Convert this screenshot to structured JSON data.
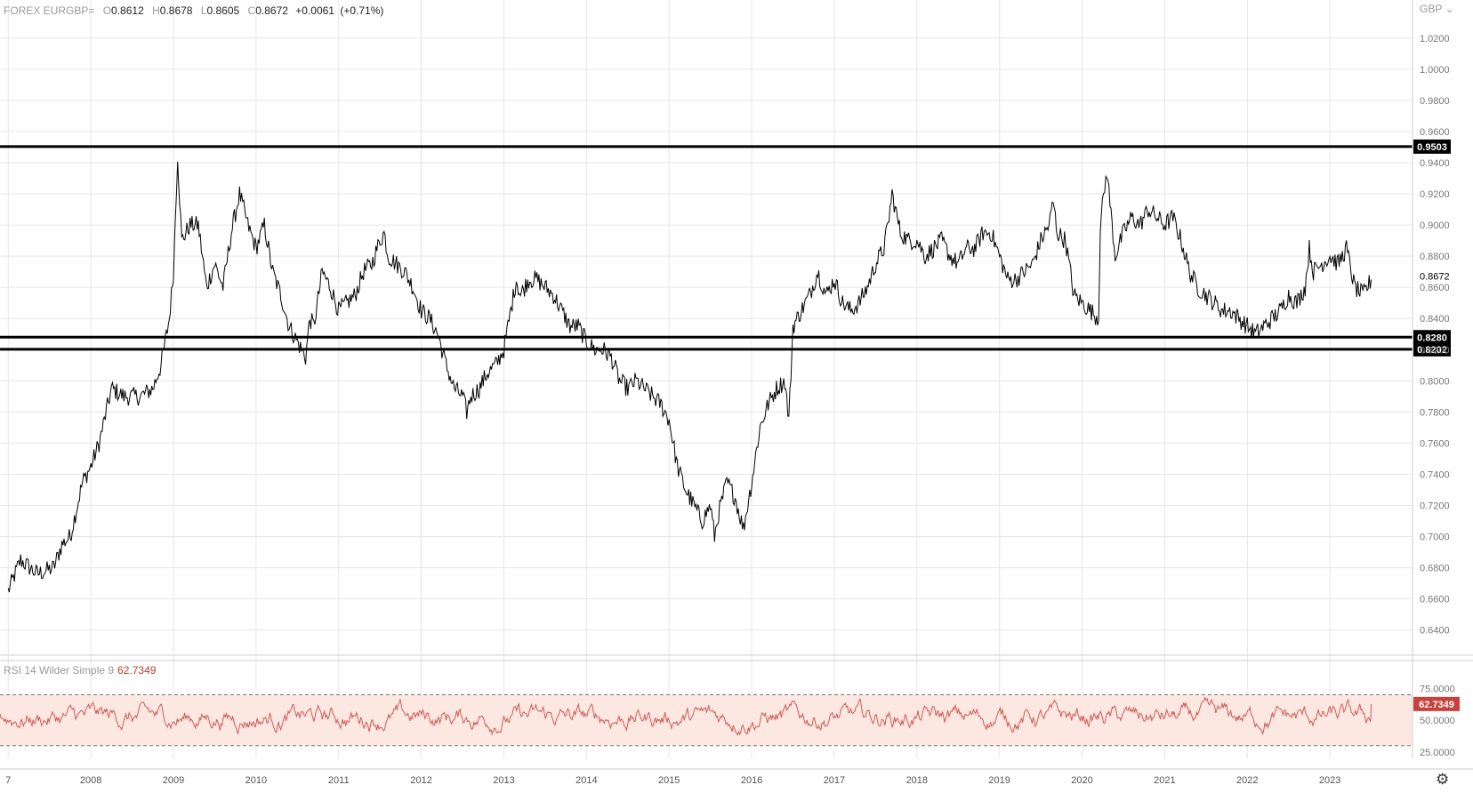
{
  "header": {
    "symbol": "FOREX EURGBP=",
    "open_label": "O",
    "open": "0.8612",
    "high_label": "H",
    "high": "0.8678",
    "low_label": "L",
    "low": "0.8605",
    "close_label": "C",
    "close": "0.8672",
    "change": "+0.0061",
    "change_pct": "(+0.71%)"
  },
  "currency_label": "GBP",
  "settings_icon": "gear-icon",
  "colors": {
    "price_line": "#000000",
    "rsi_line": "#cc5a5a",
    "rsi_band": "#fde8e1",
    "rsi_badge": "#c8413d",
    "level_line": "#000000"
  },
  "chart_data": {
    "type": "line",
    "title": "FOREX EURGBP=",
    "y_axis_label": "GBP",
    "x_tick_labels": [
      "7",
      "2008",
      "2009",
      "2010",
      "2011",
      "2012",
      "2013",
      "2014",
      "2015",
      "2016",
      "2017",
      "2018",
      "2019",
      "2020",
      "2021",
      "2022",
      "2023"
    ],
    "y_tick_labels": [
      "1.0200",
      "1.0000",
      "0.9800",
      "0.9600",
      "0.9400",
      "0.9200",
      "0.9000",
      "0.8800",
      "0.8600",
      "0.8400",
      "0.8200",
      "0.8000",
      "0.7800",
      "0.7600",
      "0.7400",
      "0.7200",
      "0.7000",
      "0.6800",
      "0.6600",
      "0.6400"
    ],
    "ylim": [
      0.625,
      1.033
    ],
    "xlim": [
      2006.9,
      2024.0
    ],
    "grid": true,
    "price_series": {
      "name": "EURGBP",
      "x": [
        2007.0,
        2007.15,
        2007.35,
        2007.55,
        2007.65,
        2007.75,
        2007.9,
        2008.0,
        2008.1,
        2008.25,
        2008.4,
        2008.6,
        2008.75,
        2008.85,
        2008.95,
        2009.0,
        2009.05,
        2009.1,
        2009.2,
        2009.3,
        2009.4,
        2009.5,
        2009.6,
        2009.7,
        2009.8,
        2009.9,
        2010.0,
        2010.1,
        2010.2,
        2010.3,
        2010.4,
        2010.5,
        2010.6,
        2010.65,
        2010.7,
        2010.8,
        2010.9,
        2011.0,
        2011.1,
        2011.2,
        2011.3,
        2011.4,
        2011.5,
        2011.55,
        2011.6,
        2011.7,
        2011.8,
        2011.9,
        2012.0,
        2012.1,
        2012.2,
        2012.3,
        2012.4,
        2012.5,
        2012.55,
        2012.6,
        2012.7,
        2012.8,
        2012.9,
        2013.0,
        2013.1,
        2013.15,
        2013.2,
        2013.3,
        2013.4,
        2013.5,
        2013.6,
        2013.7,
        2013.8,
        2013.9,
        2014.0,
        2014.1,
        2014.2,
        2014.3,
        2014.4,
        2014.5,
        2014.6,
        2014.7,
        2014.8,
        2014.9,
        2015.0,
        2015.1,
        2015.2,
        2015.3,
        2015.4,
        2015.5,
        2015.55,
        2015.6,
        2015.7,
        2015.8,
        2015.9,
        2016.0,
        2016.1,
        2016.2,
        2016.3,
        2016.4,
        2016.45,
        2016.5,
        2016.6,
        2016.7,
        2016.8,
        2016.9,
        2017.0,
        2017.1,
        2017.2,
        2017.3,
        2017.4,
        2017.5,
        2017.6,
        2017.65,
        2017.7,
        2017.8,
        2017.9,
        2018.0,
        2018.1,
        2018.2,
        2018.3,
        2018.4,
        2018.5,
        2018.6,
        2018.7,
        2018.8,
        2018.9,
        2019.0,
        2019.1,
        2019.2,
        2019.3,
        2019.4,
        2019.5,
        2019.6,
        2019.65,
        2019.7,
        2019.8,
        2019.9,
        2020.0,
        2020.1,
        2020.2,
        2020.22,
        2020.3,
        2020.4,
        2020.5,
        2020.6,
        2020.7,
        2020.8,
        2020.9,
        2021.0,
        2021.1,
        2021.2,
        2021.3,
        2021.4,
        2021.5,
        2021.6,
        2021.7,
        2021.8,
        2021.9,
        2022.0,
        2022.1,
        2022.2,
        2022.3,
        2022.4,
        2022.5,
        2022.6,
        2022.7,
        2022.75,
        2022.8,
        2022.9,
        2023.0,
        2023.1,
        2023.2,
        2023.3,
        2023.4,
        2023.5
      ],
      "values": [
        0.665,
        0.685,
        0.676,
        0.68,
        0.695,
        0.7,
        0.735,
        0.745,
        0.76,
        0.795,
        0.79,
        0.79,
        0.795,
        0.81,
        0.84,
        0.87,
        0.945,
        0.89,
        0.9,
        0.9,
        0.86,
        0.875,
        0.86,
        0.895,
        0.92,
        0.9,
        0.885,
        0.9,
        0.87,
        0.855,
        0.835,
        0.825,
        0.815,
        0.84,
        0.835,
        0.87,
        0.86,
        0.845,
        0.85,
        0.855,
        0.87,
        0.875,
        0.89,
        0.895,
        0.88,
        0.875,
        0.87,
        0.86,
        0.845,
        0.84,
        0.83,
        0.81,
        0.795,
        0.79,
        0.78,
        0.79,
        0.795,
        0.805,
        0.81,
        0.82,
        0.85,
        0.865,
        0.855,
        0.865,
        0.865,
        0.86,
        0.855,
        0.845,
        0.835,
        0.835,
        0.825,
        0.82,
        0.82,
        0.815,
        0.8,
        0.795,
        0.8,
        0.795,
        0.79,
        0.785,
        0.775,
        0.745,
        0.73,
        0.72,
        0.71,
        0.72,
        0.7,
        0.715,
        0.735,
        0.725,
        0.705,
        0.735,
        0.77,
        0.785,
        0.795,
        0.8,
        0.775,
        0.835,
        0.845,
        0.855,
        0.87,
        0.855,
        0.865,
        0.85,
        0.845,
        0.85,
        0.86,
        0.875,
        0.885,
        0.9,
        0.92,
        0.895,
        0.89,
        0.89,
        0.88,
        0.885,
        0.89,
        0.88,
        0.875,
        0.885,
        0.885,
        0.895,
        0.895,
        0.88,
        0.865,
        0.865,
        0.87,
        0.875,
        0.89,
        0.9,
        0.915,
        0.895,
        0.89,
        0.855,
        0.85,
        0.845,
        0.84,
        0.9,
        0.935,
        0.88,
        0.895,
        0.905,
        0.9,
        0.91,
        0.905,
        0.9,
        0.905,
        0.89,
        0.87,
        0.86,
        0.855,
        0.85,
        0.845,
        0.845,
        0.84,
        0.835,
        0.83,
        0.835,
        0.84,
        0.845,
        0.855,
        0.85,
        0.86,
        0.885,
        0.87,
        0.875,
        0.88,
        0.875,
        0.885,
        0.86,
        0.855,
        0.865
      ]
    },
    "horizontal_levels": [
      {
        "value": 0.9503,
        "label": "0.9503"
      },
      {
        "value": 0.828,
        "label": "0.8280"
      },
      {
        "value": 0.8202,
        "label": "0.8202"
      }
    ],
    "last_price_label": "0.8672",
    "rsi": {
      "title": "RSI 14 Wilder Simple 9",
      "value": "62.7349",
      "ylim": [
        20,
        85
      ],
      "band": [
        30,
        70
      ],
      "tick_labels": [
        "75.0000",
        "50.0000",
        "25.0000"
      ]
    }
  }
}
